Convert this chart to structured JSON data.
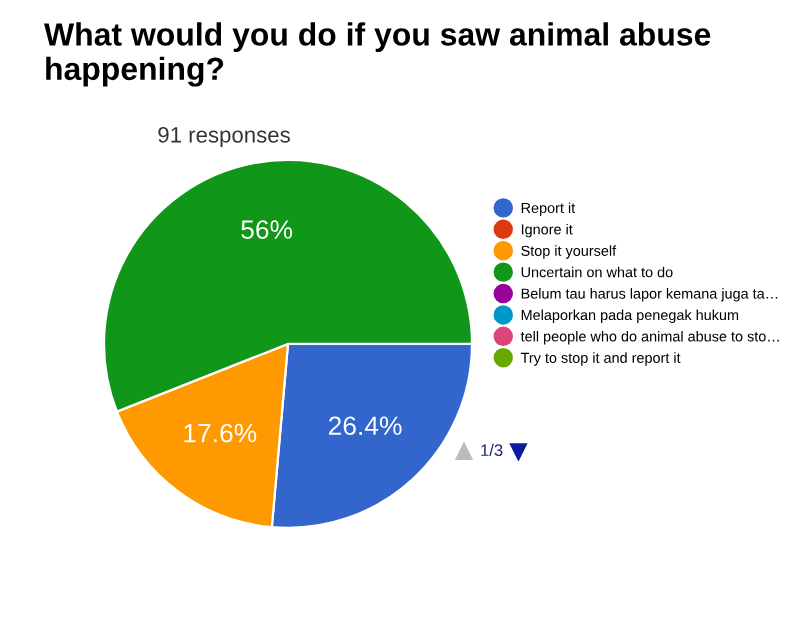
{
  "chart_data": {
    "type": "pie",
    "title": "What would you do if you saw animal abuse happening?",
    "subtitle": "91 responses",
    "categories": [
      "Report it",
      "Ignore it",
      "Stop it yourself",
      "Uncertain on what to do",
      "Belum tau harus lapor kemana juga ta…",
      "Melaporkan pada penegak hukum",
      "tell people who do animal abuse to sto…",
      "Try to stop it and report it"
    ],
    "values": [
      26.4,
      0,
      17.6,
      56,
      0,
      0,
      0,
      0
    ],
    "value_labels": [
      "26.4%",
      null,
      "17.6%",
      "56%",
      null,
      null,
      null,
      null
    ],
    "colors": [
      "#3366cc",
      "#dc3912",
      "#ff9900",
      "#109618",
      "#990099",
      "#0099c6",
      "#dd4477",
      "#66aa00"
    ],
    "legend": "right",
    "annotations": [
      "1/3"
    ]
  }
}
